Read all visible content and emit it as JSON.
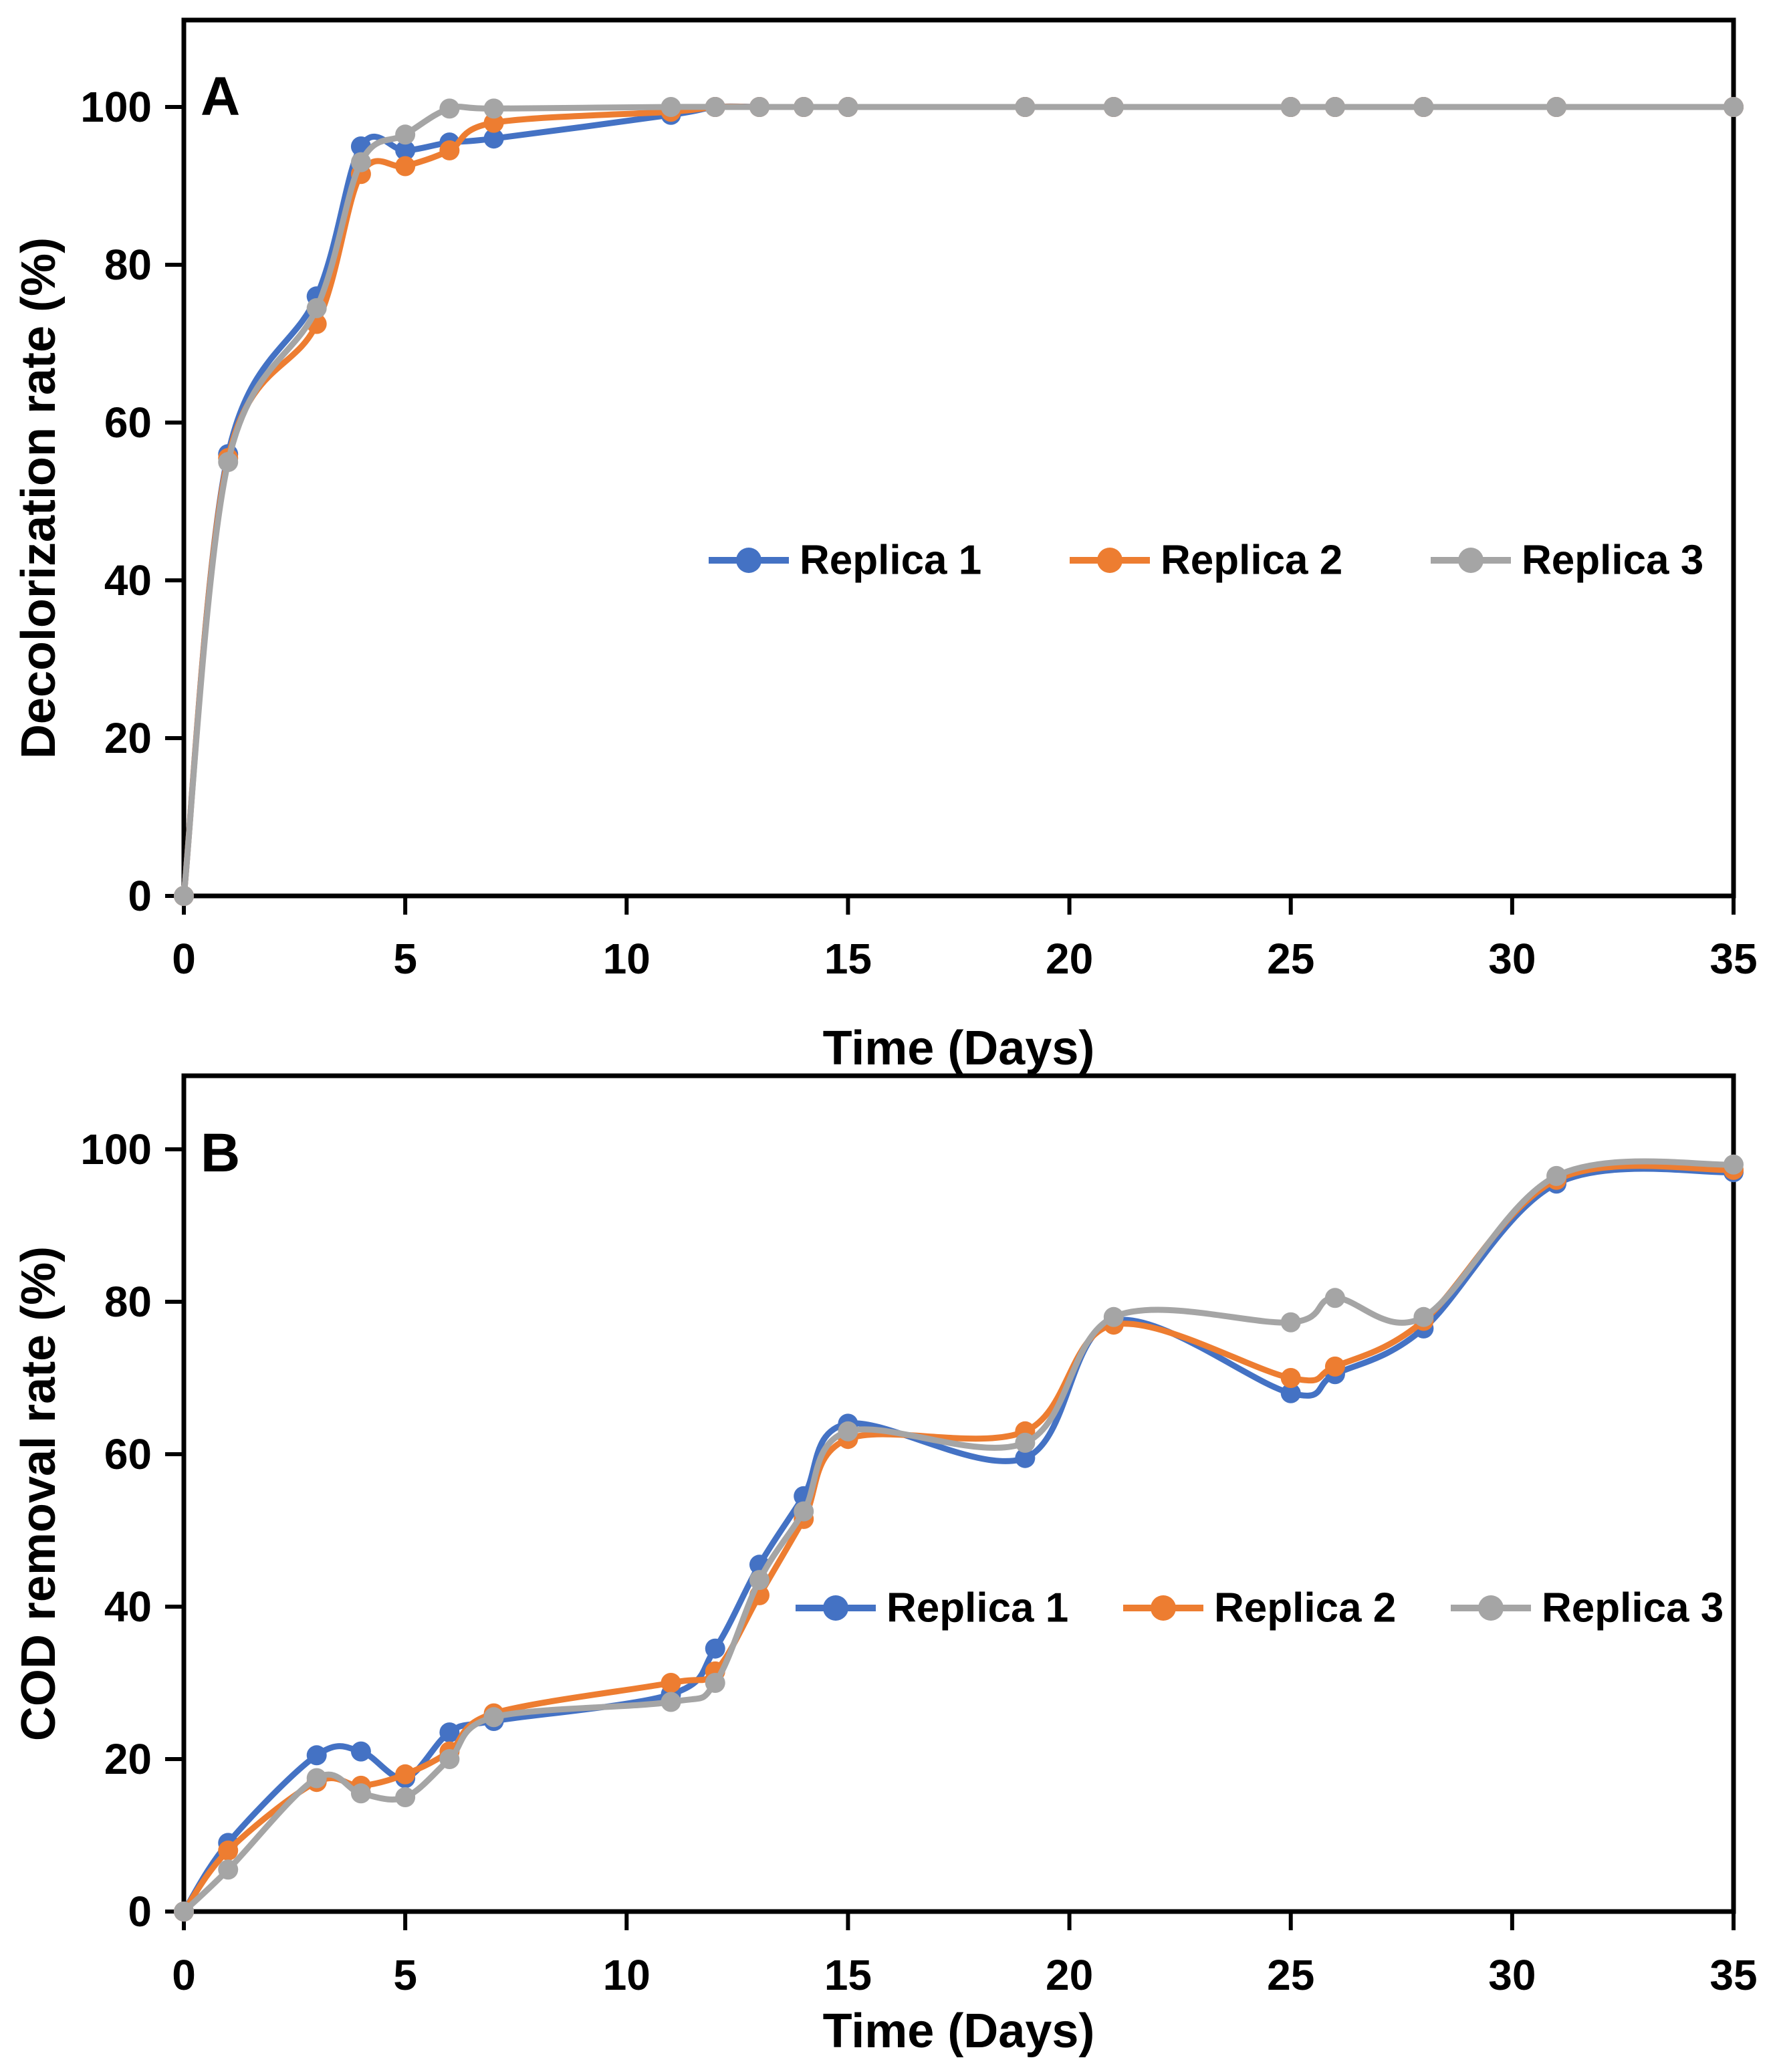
{
  "figure": {
    "background": "#FFFFFF",
    "axis_color": "#000000",
    "text_color": "#000000"
  },
  "legend": {
    "entries": [
      "Replica 1",
      "Replica 2",
      "Replica 3"
    ]
  },
  "chart_data": [
    {
      "type": "line",
      "panel_label": "A",
      "title": "",
      "xlabel": "Time (Days)",
      "ylabel": "Decolorization rate (%)",
      "xlim": [
        0,
        35
      ],
      "ylim": [
        0,
        110
      ],
      "grid": false,
      "legend_position": "center-right-inside",
      "x_ticks": [
        0,
        5,
        10,
        15,
        20,
        25,
        30,
        35
      ],
      "y_ticks": [
        0,
        20,
        40,
        60,
        80,
        100
      ],
      "x": [
        0,
        1,
        3,
        4,
        5,
        6,
        7,
        11,
        12,
        13,
        14,
        15,
        19,
        21,
        25,
        26,
        28,
        31,
        35
      ],
      "series": [
        {
          "name": "Replica 1",
          "color": "#4472C4",
          "values": [
            0,
            56,
            76,
            95,
            94.5,
            95.5,
            96,
            99,
            100,
            100,
            100,
            100,
            100,
            100,
            100,
            100,
            100,
            100,
            100
          ]
        },
        {
          "name": "Replica 2",
          "color": "#ED7D31",
          "values": [
            0,
            55.5,
            72.5,
            91.5,
            92.5,
            94.5,
            98,
            99.4,
            100,
            100,
            100,
            100,
            100,
            100,
            100,
            100,
            100,
            100,
            100
          ]
        },
        {
          "name": "Replica 3",
          "color": "#A5A5A5",
          "values": [
            0,
            55,
            74.5,
            93,
            96.5,
            99.8,
            99.8,
            100,
            100,
            100,
            100,
            100,
            100,
            100,
            100,
            100,
            100,
            100,
            100
          ]
        }
      ]
    },
    {
      "type": "line",
      "panel_label": "B",
      "title": "",
      "xlabel": "Time (Days)",
      "ylabel": "COD removal rate (%)",
      "xlim": [
        0,
        35
      ],
      "ylim": [
        0,
        110
      ],
      "grid": false,
      "legend_position": "center-right-inside",
      "x_ticks": [
        0,
        5,
        10,
        15,
        20,
        25,
        30,
        35
      ],
      "y_ticks": [
        0,
        20,
        40,
        60,
        80,
        100
      ],
      "x": [
        0,
        1,
        3,
        4,
        5,
        6,
        7,
        11,
        12,
        13,
        14,
        15,
        19,
        21,
        25,
        26,
        28,
        31,
        35
      ],
      "series": [
        {
          "name": "Replica 1",
          "color": "#4472C4",
          "values": [
            0,
            9,
            20.5,
            21,
            17.5,
            23.5,
            25,
            28.5,
            34.5,
            45.5,
            54.5,
            64,
            59.5,
            77.5,
            68,
            70.5,
            76.5,
            95.5,
            97
          ]
        },
        {
          "name": "Replica 2",
          "color": "#ED7D31",
          "values": [
            0,
            8,
            17,
            16.5,
            18,
            21,
            26,
            30,
            31.5,
            41.5,
            51.5,
            62,
            63,
            77,
            70,
            71.5,
            77.5,
            96,
            97.3
          ]
        },
        {
          "name": "Replica 3",
          "color": "#A5A5A5",
          "values": [
            0,
            5.5,
            17.5,
            15.5,
            15,
            20,
            25.5,
            27.5,
            30,
            43.5,
            52.5,
            63,
            61.5,
            78,
            77.3,
            80.5,
            78,
            96.5,
            98
          ]
        }
      ]
    }
  ]
}
